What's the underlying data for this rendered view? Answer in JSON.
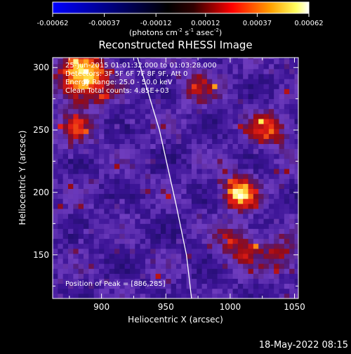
{
  "chart_data": {
    "type": "heatmap",
    "title": "Reconstructed RHESSI Image",
    "xlabel": "Heliocentric X (arcsec)",
    "ylabel": "Heliocentric Y (arcsec)",
    "xlim": [
      862,
      1053
    ],
    "ylim": [
      115,
      308
    ],
    "x_ticks": [
      900,
      950,
      1000,
      1050
    ],
    "y_ticks": [
      150,
      200,
      250,
      300
    ],
    "colorbar": {
      "ticks": [
        -0.00062,
        -0.00037,
        -0.00012,
        0.00012,
        0.00037,
        0.00062
      ],
      "tick_labels": [
        "-0.00062",
        "-0.00037",
        "-0.00012",
        "0.00012",
        "0.00037",
        "0.00062"
      ],
      "range": [
        -0.00062,
        0.00062
      ],
      "colormap": [
        "#0000ff",
        "#000000",
        "#ff0000",
        "#ffff00",
        "#ffffff"
      ],
      "unit_label": "(photons cm",
      "unit_exp1": "-2",
      "unit_mid": " s",
      "unit_exp2": "-1",
      "unit_mid2": " asec",
      "unit_exp3": "-2",
      "unit_end": ")"
    },
    "info_lines": [
      "25-Jun-2015 01:01:32.000 to 01:03:28.000",
      "Detectors: 3F 5F 6F 7F 8F 9F, Att 0",
      "Energy Range: 25.0 - 50.0 keV",
      "Clean   Total counts: 4.85E+03"
    ],
    "peak_label": "Position of Peak = [886,285]",
    "peak": [
      886,
      285
    ],
    "sources": [
      {
        "x": 886,
        "y": 292,
        "amp": 1.0,
        "sigma": 14
      },
      {
        "x": 1007,
        "y": 200,
        "amp": 0.92,
        "sigma": 9
      },
      {
        "x": 1030,
        "y": 250,
        "amp": 0.55,
        "sigma": 11
      },
      {
        "x": 1008,
        "y": 158,
        "amp": 0.5,
        "sigma": 12
      },
      {
        "x": 1040,
        "y": 150,
        "amp": 0.45,
        "sigma": 10
      },
      {
        "x": 880,
        "y": 250,
        "amp": 0.4,
        "sigma": 10
      },
      {
        "x": 975,
        "y": 285,
        "amp": 0.35,
        "sigma": 12
      }
    ],
    "limb_curve": [
      [
        928,
        308
      ],
      [
        945,
        250
      ],
      [
        958,
        190
      ],
      [
        966,
        150
      ],
      [
        970,
        115
      ]
    ]
  },
  "footer": {
    "timestamp": "18-May-2022 08:15"
  }
}
